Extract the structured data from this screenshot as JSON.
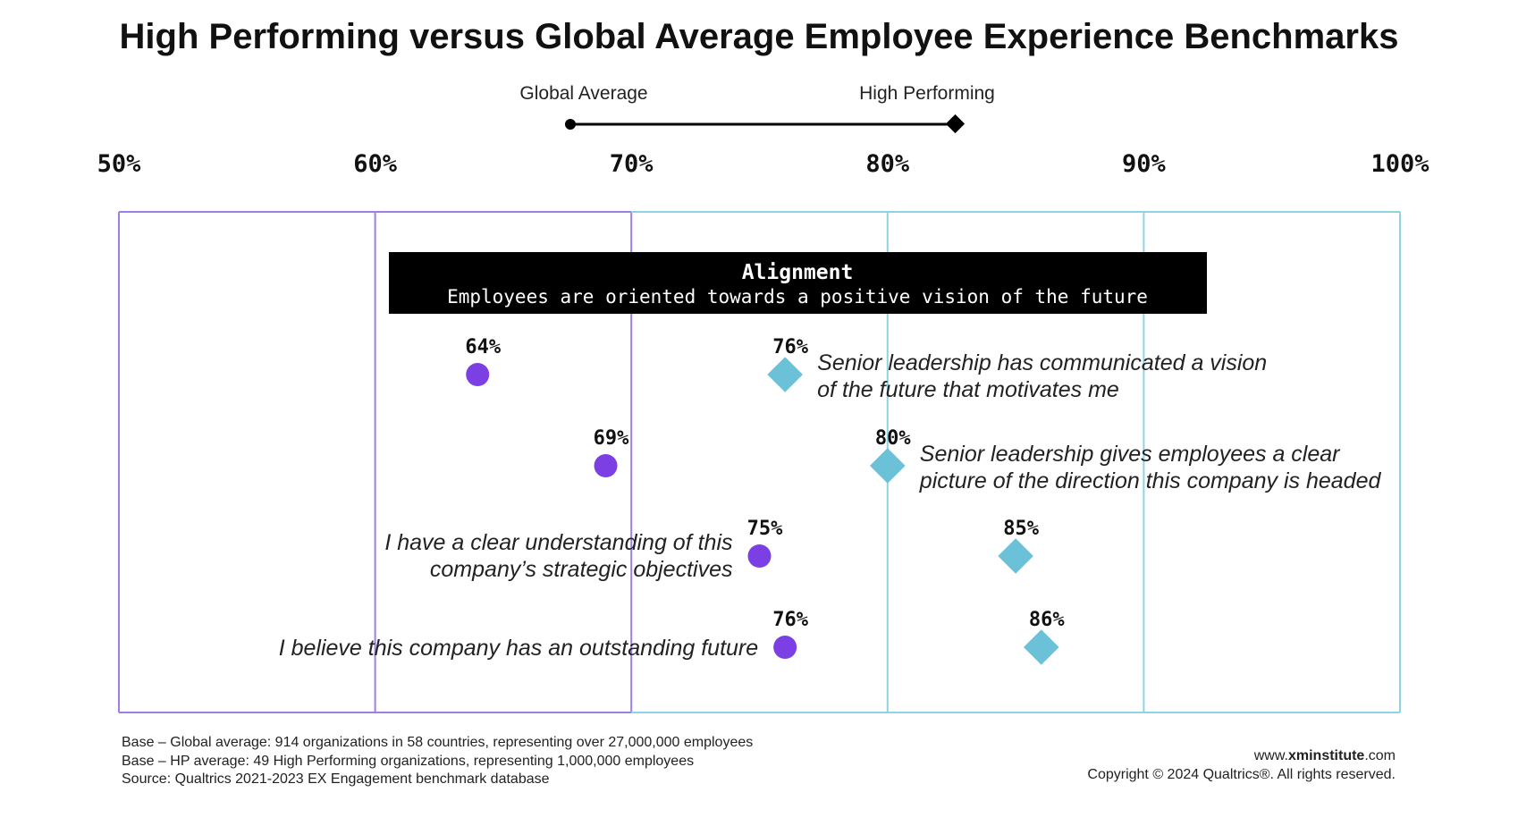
{
  "chart_data": {
    "type": "dumbbell",
    "title": "High Performing versus Global Average Employee Experience Benchmarks",
    "legend": {
      "global": "Global Average",
      "high": "High Performing"
    },
    "x_ticks": [
      "50%",
      "60%",
      "70%",
      "80%",
      "90%",
      "100%"
    ],
    "xlim": [
      50,
      100
    ],
    "section": {
      "title": "Alignment",
      "subtitle": "Employees are oriented towards a positive vision of the future"
    },
    "items": [
      {
        "label_lines": [
          "Senior leadership has communicated a vision",
          "of the future that motivates me"
        ],
        "global": 64,
        "global_label": "64%",
        "high": 76,
        "high_label": "76%"
      },
      {
        "label_lines": [
          "Senior leadership gives employees a clear",
          "picture of the direction this company is headed"
        ],
        "global": 69,
        "global_label": "69%",
        "high": 80,
        "high_label": "80%"
      },
      {
        "label_lines": [
          "I have a clear understanding of this",
          "company’s strategic objectives"
        ],
        "global": 75,
        "global_label": "75%",
        "high": 85,
        "high_label": "85%"
      },
      {
        "label_lines": [
          "I believe this company has an outstanding future"
        ],
        "global": 76,
        "global_label": "76%",
        "high": 86,
        "high_label": "86%"
      }
    ],
    "colors": {
      "global": "#7b3fe4",
      "high": "#6bc1d8",
      "grid_left": "#a27de6",
      "grid_right": "#8fd3e3"
    }
  },
  "footer": {
    "base_global": "Base – Global average: 914 organizations in 58 countries, representing over 27,000,000 employees",
    "base_hp": "Base – HP average: 49 High Performing organizations,  representing 1,000,000 employees",
    "source": "Source: Qualtrics 2021-2023 EX Engagement benchmark database",
    "url_prefix": "www.",
    "url_bold": "xminstitute",
    "url_suffix": ".com",
    "copyright": "Copyright © 2024 Qualtrics®. All rights reserved."
  }
}
